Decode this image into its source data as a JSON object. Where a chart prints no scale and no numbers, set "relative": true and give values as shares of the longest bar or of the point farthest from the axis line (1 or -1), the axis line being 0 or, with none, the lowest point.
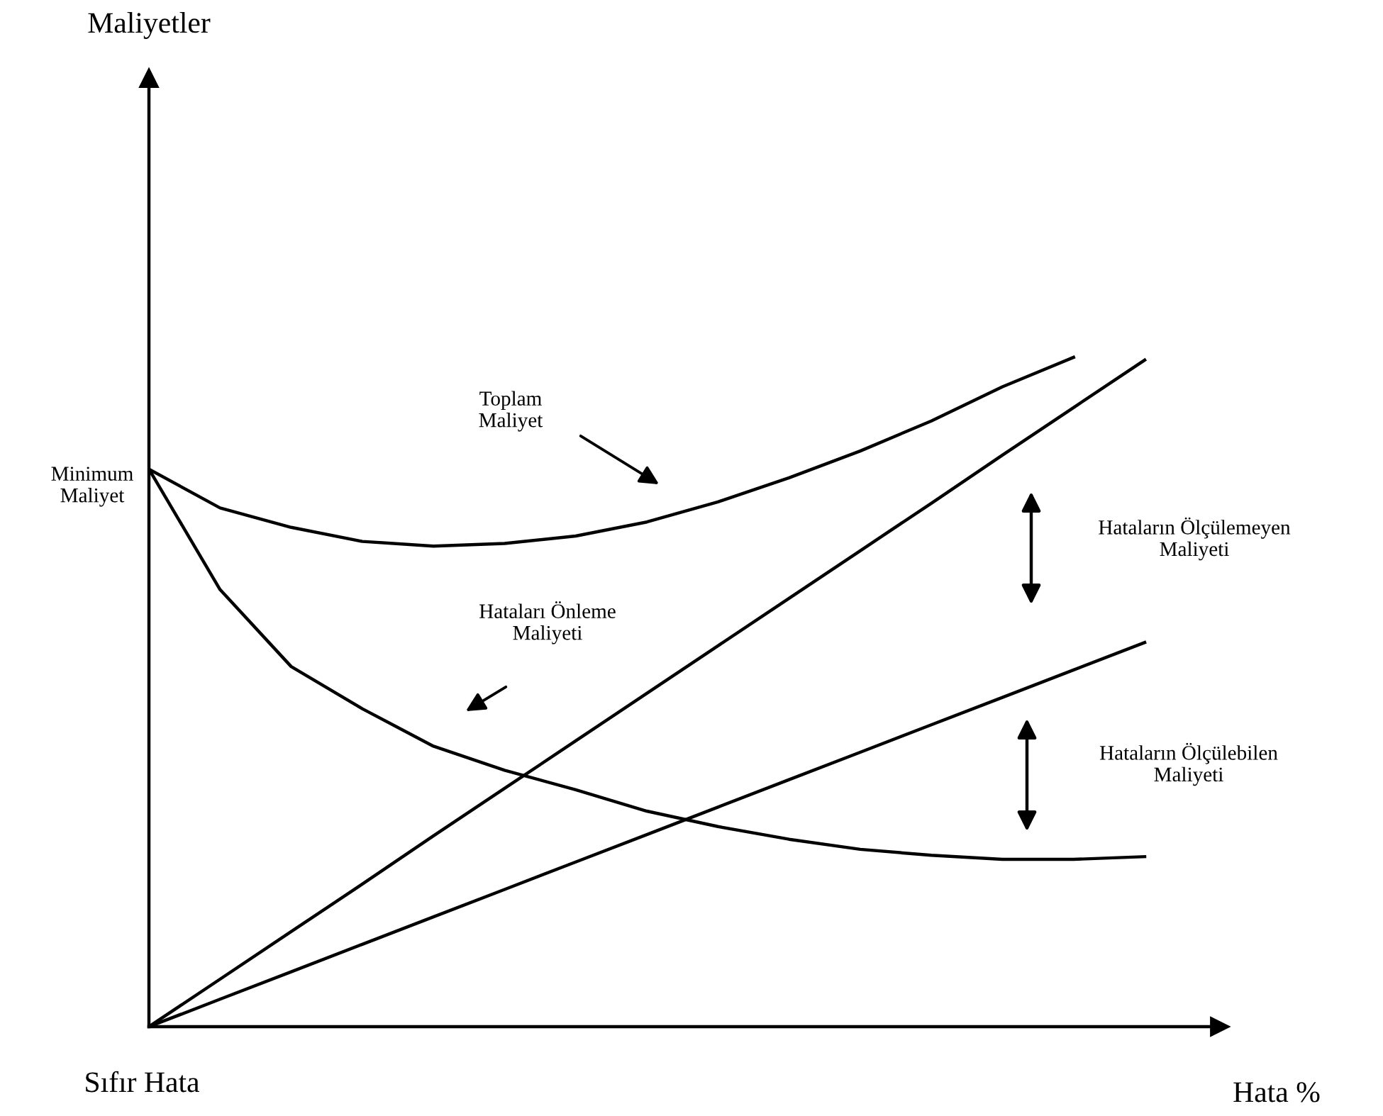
{
  "chart_data": {
    "type": "line",
    "relative": true,
    "xlabel": "Hata %",
    "categories": [
      null,
      null,
      null,
      null,
      null,
      null,
      null,
      null,
      null,
      null,
      null,
      null,
      null,
      null,
      null
    ],
    "series": [
      {
        "color": "#000000",
        "values": [
          0.833,
          0.775,
          0.746,
          0.725,
          0.718,
          0.722,
          0.733,
          0.754,
          0.784,
          0.82,
          0.86,
          0.905,
          0.956,
          1.0,
          null
        ]
      },
      {
        "color": "#000000",
        "values": [
          0.833,
          0.653,
          0.538,
          0.475,
          0.419,
          0.383,
          0.354,
          0.322,
          0.299,
          0.28,
          0.265,
          0.256,
          0.25,
          0.25,
          0.254
        ]
      },
      {
        "color": "#000000",
        "values": [
          0,
          0.071,
          0.142,
          0.213,
          0.285,
          0.356,
          0.427,
          0.498,
          0.569,
          0.64,
          0.711,
          0.782,
          0.854,
          0.925,
          0.996
        ]
      },
      {
        "color": "#000000",
        "values": [
          0,
          0.041,
          0.082,
          0.123,
          0.164,
          0.205,
          0.246,
          0.287,
          0.328,
          0.369,
          0.41,
          0.451,
          0.492,
          0.533,
          0.574
        ]
      }
    ],
    "annotations": [
      "Toplam\nMaliyet",
      "Hataları Önleme\nMaliyeti",
      "Hataların Ölçülemeyen\nMaliyeti",
      "Hataların Ölçülebilen\nMaliyeti",
      "Minimum\nMaliyet",
      "Sıfır Hata",
      "Maliyetler"
    ],
    "marker": "none",
    "line_style": "solid",
    "legend": false
  }
}
